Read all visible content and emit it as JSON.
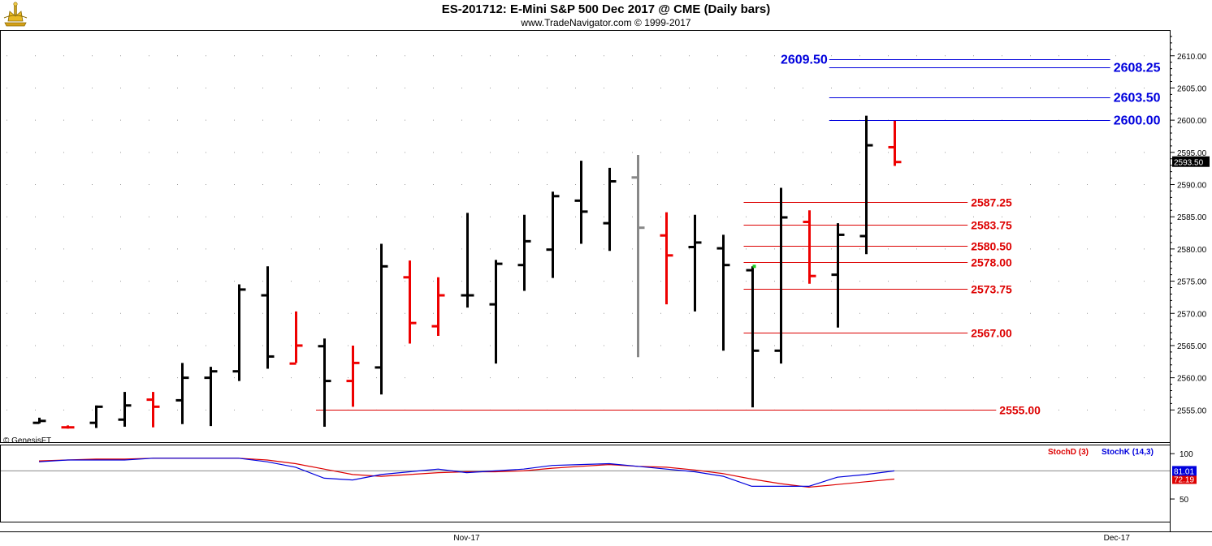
{
  "header": {
    "title": "ES-201712:  E-Mini S&P 500 Dec 2017 @ CME  (Daily bars)",
    "subtitle": "www.TradeNavigator.com © 1999-2017",
    "logo_icon": "golden-crown-logo-icon"
  },
  "chart_data": [
    {
      "type": "ohlc",
      "ylim": [
        2550,
        2614
      ],
      "y_ticks": [
        "2555.00",
        "2560.00",
        "2565.00",
        "2570.00",
        "2575.00",
        "2580.00",
        "2585.00",
        "2590.00",
        "2595.00",
        "2600.00",
        "2605.00",
        "2610.00"
      ],
      "last_price_label": "2593.50",
      "watermark": "© GenesisFT",
      "x_ticks": [
        "Nov-17",
        "Dec-17"
      ],
      "colors": {
        "up": "#000000",
        "down": "#ee0000",
        "neutral": "#888888"
      },
      "bars": [
        {
          "x": 1,
          "open": 2553.0,
          "high": 2553.8,
          "low": 2552.9,
          "close": 2553.3,
          "color": "black"
        },
        {
          "x": 2,
          "open": 2552.3,
          "high": 2552.6,
          "low": 2552.1,
          "close": 2552.3,
          "color": "red"
        },
        {
          "x": 3,
          "open": 2553.0,
          "high": 2555.7,
          "low": 2552.2,
          "close": 2555.5,
          "color": "black"
        },
        {
          "x": 4,
          "open": 2553.5,
          "high": 2557.8,
          "low": 2552.4,
          "close": 2555.7,
          "color": "black"
        },
        {
          "x": 5,
          "open": 2556.6,
          "high": 2557.8,
          "low": 2552.3,
          "close": 2555.5,
          "color": "red"
        },
        {
          "x": 6,
          "open": 2556.5,
          "high": 2562.3,
          "low": 2552.8,
          "close": 2560.0,
          "color": "black"
        },
        {
          "x": 7,
          "open": 2560.0,
          "high": 2561.7,
          "low": 2552.5,
          "close": 2561.0,
          "color": "black"
        },
        {
          "x": 8,
          "open": 2561.0,
          "high": 2574.5,
          "low": 2559.5,
          "close": 2573.7,
          "color": "black"
        },
        {
          "x": 9,
          "open": 2572.8,
          "high": 2577.3,
          "low": 2561.4,
          "close": 2563.3,
          "color": "black"
        },
        {
          "x": 10,
          "open": 2562.2,
          "high": 2570.3,
          "low": 2562.3,
          "close": 2565.0,
          "color": "red"
        },
        {
          "x": 11,
          "open": 2564.9,
          "high": 2566.1,
          "low": 2552.4,
          "close": 2559.5,
          "color": "black"
        },
        {
          "x": 12,
          "open": 2559.5,
          "high": 2565.0,
          "low": 2555.5,
          "close": 2562.3,
          "color": "red"
        },
        {
          "x": 13,
          "open": 2561.6,
          "high": 2580.8,
          "low": 2557.4,
          "close": 2577.3,
          "color": "black"
        },
        {
          "x": 14,
          "open": 2575.6,
          "high": 2578.2,
          "low": 2565.3,
          "close": 2568.5,
          "color": "red"
        },
        {
          "x": 15,
          "open": 2568.0,
          "high": 2575.6,
          "low": 2566.5,
          "close": 2572.8,
          "color": "red"
        },
        {
          "x": 16,
          "open": 2572.8,
          "high": 2585.6,
          "low": 2570.9,
          "close": 2572.8,
          "color": "black"
        },
        {
          "x": 17,
          "open": 2571.4,
          "high": 2578.3,
          "low": 2562.2,
          "close": 2577.7,
          "color": "black"
        },
        {
          "x": 18,
          "open": 2577.5,
          "high": 2585.3,
          "low": 2573.5,
          "close": 2581.2,
          "color": "black"
        },
        {
          "x": 19,
          "open": 2579.9,
          "high": 2588.9,
          "low": 2575.5,
          "close": 2588.2,
          "color": "black"
        },
        {
          "x": 20,
          "open": 2587.5,
          "high": 2593.7,
          "low": 2580.8,
          "close": 2585.8,
          "color": "black"
        },
        {
          "x": 21,
          "open": 2584.0,
          "high": 2592.6,
          "low": 2579.7,
          "close": 2590.5,
          "color": "black"
        },
        {
          "x": 22,
          "open": 2591.1,
          "high": 2594.6,
          "low": 2563.2,
          "close": 2583.3,
          "color": "gray"
        },
        {
          "x": 23,
          "open": 2582.1,
          "high": 2585.7,
          "low": 2571.4,
          "close": 2579.0,
          "color": "red"
        },
        {
          "x": 24,
          "open": 2580.3,
          "high": 2585.3,
          "low": 2570.3,
          "close": 2581.0,
          "color": "black"
        },
        {
          "x": 25,
          "open": 2580.1,
          "high": 2582.2,
          "low": 2564.2,
          "close": 2577.5,
          "color": "black"
        },
        {
          "x": 26,
          "open": 2576.7,
          "high": 2577.3,
          "low": 2555.4,
          "close": 2564.2,
          "color": "black"
        },
        {
          "x": 27,
          "open": 2564.2,
          "high": 2589.5,
          "low": 2562.2,
          "close": 2584.9,
          "color": "black"
        },
        {
          "x": 28,
          "open": 2584.2,
          "high": 2586.0,
          "low": 2574.6,
          "close": 2575.8,
          "color": "red"
        },
        {
          "x": 29,
          "open": 2576.0,
          "high": 2584.0,
          "low": 2567.8,
          "close": 2582.2,
          "color": "black"
        },
        {
          "x": 30,
          "open": 2582.0,
          "high": 2600.7,
          "low": 2579.2,
          "close": 2596.1,
          "color": "black"
        },
        {
          "x": 31,
          "open": 2595.8,
          "high": 2599.9,
          "low": 2592.9,
          "close": 2593.5,
          "color": "red"
        }
      ],
      "levels": [
        {
          "value": 2609.5,
          "label": "2609.50",
          "color": "#0000dd",
          "from_x": 29,
          "to_x": 38,
          "label_side": "left"
        },
        {
          "value": 2608.25,
          "label": "2608.25",
          "color": "#0000dd",
          "from_x": 29,
          "to_x": 38,
          "label_side": "right"
        },
        {
          "value": 2603.5,
          "label": "2603.50",
          "color": "#0000dd",
          "from_x": 29,
          "to_x": 38,
          "label_side": "right"
        },
        {
          "value": 2600.0,
          "label": "2600.00",
          "color": "#0000dd",
          "from_x": 29,
          "to_x": 38,
          "label_side": "right"
        },
        {
          "value": 2587.25,
          "label": "2587.25",
          "color": "#dd0000",
          "from_x": 26,
          "to_x": 33,
          "label_side": "right"
        },
        {
          "value": 2583.75,
          "label": "2583.75",
          "color": "#dd0000",
          "from_x": 26,
          "to_x": 33,
          "label_side": "right"
        },
        {
          "value": 2580.5,
          "label": "2580.50",
          "color": "#dd0000",
          "from_x": 26,
          "to_x": 33,
          "label_side": "right"
        },
        {
          "value": 2578.0,
          "label": "2578.00",
          "color": "#dd0000",
          "from_x": 26,
          "to_x": 33,
          "label_side": "right"
        },
        {
          "value": 2573.75,
          "label": "2573.75",
          "color": "#dd0000",
          "from_x": 26,
          "to_x": 33,
          "label_side": "right"
        },
        {
          "value": 2567.0,
          "label": "2567.00",
          "color": "#dd0000",
          "from_x": 26,
          "to_x": 33,
          "label_side": "right"
        },
        {
          "value": 2555.0,
          "label": "2555.00",
          "color": "#dd0000",
          "from_x": 11,
          "to_x": 34,
          "label_side": "right"
        }
      ],
      "marker": {
        "x": 26,
        "value": 2577.3,
        "color": "#22cc22"
      }
    },
    {
      "type": "line",
      "ylim": [
        25,
        110
      ],
      "y_ticks": [
        "100",
        "50"
      ],
      "reference_line": 81,
      "series": [
        {
          "name": "StochD (3)",
          "color": "#dd0000",
          "last_label": "72.19",
          "x": [
            1,
            2,
            3,
            4,
            5,
            6,
            7,
            8,
            9,
            10,
            11,
            12,
            13,
            14,
            15,
            16,
            17,
            18,
            19,
            20,
            21,
            22,
            23,
            24,
            25,
            26,
            27,
            28,
            29,
            30,
            31
          ],
          "values": [
            92,
            93,
            94,
            94,
            95,
            95,
            95,
            95,
            93,
            89,
            83,
            77,
            75,
            77,
            79,
            80,
            80,
            81,
            84,
            86,
            88,
            86,
            85,
            82,
            78,
            72,
            67,
            63,
            66,
            69,
            72
          ]
        },
        {
          "name": "StochK (14,3)",
          "color": "#0000dd",
          "last_label": "81.01",
          "x": [
            1,
            2,
            3,
            4,
            5,
            6,
            7,
            8,
            9,
            10,
            11,
            12,
            13,
            14,
            15,
            16,
            17,
            18,
            19,
            20,
            21,
            22,
            23,
            24,
            25,
            26,
            27,
            28,
            29,
            30,
            31
          ],
          "values": [
            91,
            93,
            93,
            93,
            95,
            95,
            95,
            95,
            91,
            85,
            73,
            71,
            77,
            80,
            83,
            79,
            81,
            83,
            87,
            88,
            89,
            86,
            83,
            80,
            75,
            64,
            64,
            64,
            74,
            77,
            81
          ]
        }
      ]
    }
  ]
}
